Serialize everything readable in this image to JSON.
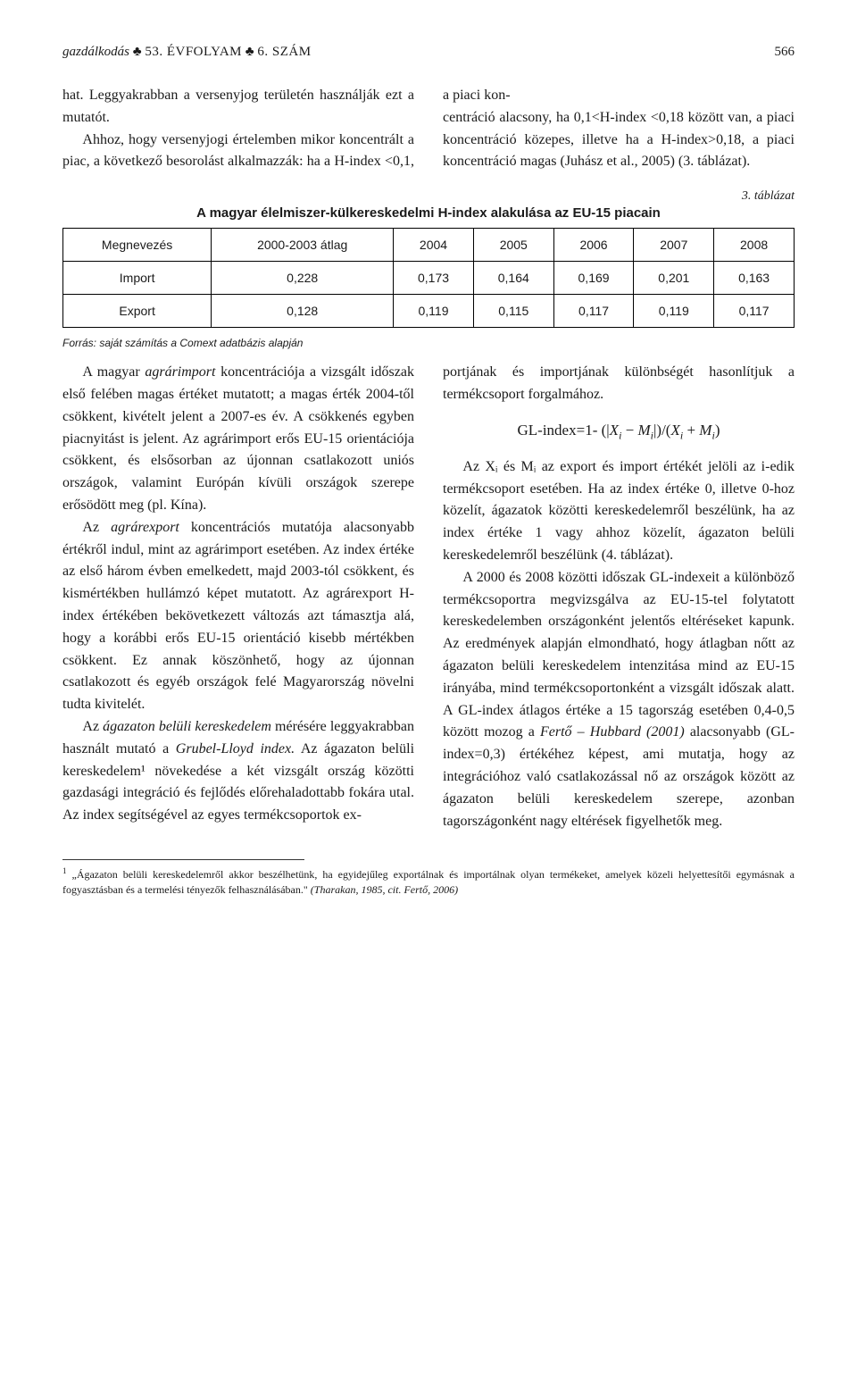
{
  "header": {
    "journal": "gazdálkodás",
    "club1": "♣",
    "volume": "53. ÉVFOLYAM",
    "club2": "♣",
    "issue": "6. SZÁM",
    "page": "566"
  },
  "top_para_left": "hat. Leggyakrabban a versenyjog területén használják ezt a mutatót.",
  "top_para_left2": "Ahhoz, hogy versenyjogi értelemben mikor koncentrált a piac, a következő besorolást alkalmazzák: ha a H-index <0,1, a piaci kon-",
  "top_para_right": "centráció alacsony, ha 0,1<H-index <0,18 között van, a piaci koncentráció közepes, illetve ha a H-index>0,18, a piaci koncentráció magas (Juhász et al., 2005) (3. táblázat).",
  "table3": {
    "number": "3. táblázat",
    "caption": "A magyar élelmiszer-külkereskedelmi H-index alakulása az EU-15 piacain",
    "columns": [
      "Megnevezés",
      "2000-2003 átlag",
      "2004",
      "2005",
      "2006",
      "2007",
      "2008"
    ],
    "rows": [
      [
        "Import",
        "0,228",
        "0,173",
        "0,164",
        "0,169",
        "0,201",
        "0,163"
      ],
      [
        "Export",
        "0,128",
        "0,119",
        "0,115",
        "0,117",
        "0,119",
        "0,117"
      ]
    ],
    "source": "Forrás: saját számítás a Comext adatbázis alapján",
    "border_color": "#000000",
    "font_family": "Arial",
    "header_fontsize": 14,
    "cell_fontsize": 14
  },
  "body_left_p1": "A magyar agrárimport koncentrációja a vizsgált időszak első felében magas értéket mutatott; a magas érték 2004-től csökkent, kivételt jelent a 2007-es év. A csökkenés egyben piacnyitást is jelent. Az agrárimport erős EU-15 orientációja csökkent, és elsősorban az újonnan csatlakozott uniós országok, valamint Európán kívüli országok szerepe erősödött meg (pl. Kína).",
  "body_left_p2": "Az agrárexport koncentrációs mutatója alacsonyabb értékről indul, mint az agrárimport esetében. Az index értéke az első három évben emelkedett, majd 2003-tól csökkent, és kismértékben hullámzó képet mutatott. Az agrárexport H-index értékében bekövetkezett változás azt támasztja alá, hogy a korábbi erős EU-15 orientáció kisebb mértékben csökkent. Ez annak köszönhető, hogy az újonnan csatlakozott és egyéb országok felé Magyarország növelni tudta kivitelét.",
  "body_left_p3": "Az ágazaton belüli kereskedelem mérésére leggyakrabban használt mutató a Grubel-Lloyd index. Az ágazaton belüli kereskedelem¹ növekedése a két vizsgált ország közötti gazdasági integráció és fejlődés előrehaladottabb fokára utal. Az index segítségével az egyes termékcsoportok ex-",
  "body_right_p1": "portjának és importjának különbségét hasonlítjuk a termékcsoport forgalmához.",
  "formula": "GL-index=1- (|Xᵢ − Mᵢ|)/(Xᵢ + Mᵢ)",
  "body_right_p2": "Az Xᵢ és Mᵢ az export és import értékét jelöli az i-edik termékcsoport esetében. Ha az index értéke 0, illetve 0-hoz közelít, ágazatok közötti kereskedelemről beszélünk, ha az index értéke 1 vagy ahhoz közelít, ágazaton belüli kereskedelemről beszélünk (4. táblázat).",
  "body_right_p3": "A 2000 és 2008 közötti időszak GL-indexeit a különböző termékcsoportra megvizsgálva az EU-15-tel folytatott kereskedelemben országonként jelentős eltéréseket kapunk. Az eredmények alapján elmondható, hogy átlagban nőtt az ágazaton belüli kereskedelem intenzitása mind az EU-15 irányába, mind termékcsoportonként a vizsgált időszak alatt. A GL-index átlagos értéke a 15 tagország esetében 0,4-0,5 között mozog a Fertő – Hubbard (2001) alacsonyabb (GL-index=0,3) értékéhez képest, ami mutatja, hogy az integrációhoz való csatlakozással nő az országok között az ágazaton belüli kereskedelem szerepe, azonban tagországonként nagy eltérések figyelhetők meg.",
  "footnote": "¹ „Ágazaton belüli kereskedelemről akkor beszélhetünk, ha egyidejűleg exportálnak és importálnak olyan termékeket, amelyek közeli helyettesítői egymásnak a fogyasztásban és a termelési tényezők felhasználásában.\" (Tharakan, 1985, cit. Fertő, 2006)",
  "colors": {
    "text": "#1a1a1a",
    "background": "#ffffff",
    "rule": "#333333"
  }
}
